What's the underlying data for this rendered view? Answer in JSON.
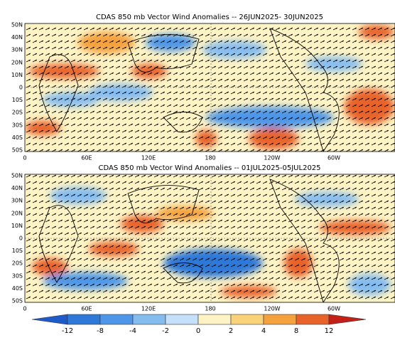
{
  "panels": [
    {
      "title": "CDAS 850 mb Vector Wind Anomalies -- 26JUN2025- 30JUN2025",
      "lat_labels": [
        "50N",
        "40N",
        "30N",
        "20N",
        "10N",
        "0",
        "10S",
        "20S",
        "30S",
        "40S",
        "50S"
      ],
      "lon_labels": [
        "0",
        "60E",
        "120E",
        "180",
        "120W",
        "60W"
      ]
    },
    {
      "title": "CDAS 850 mb Vector Wind Anomalies -- 01JUL2025-05JUL2025",
      "lat_labels": [
        "50N",
        "40N",
        "30N",
        "20N",
        "10N",
        "0",
        "10S",
        "20S",
        "30S",
        "40S",
        "50S"
      ],
      "lon_labels": [
        "0",
        "60E",
        "120E",
        "180",
        "120W",
        "60W"
      ]
    }
  ],
  "colorbar": {
    "labels": [
      "-12",
      "-8",
      "-4",
      "-2",
      "0",
      "2",
      "4",
      "8",
      "12"
    ]
  }
}
